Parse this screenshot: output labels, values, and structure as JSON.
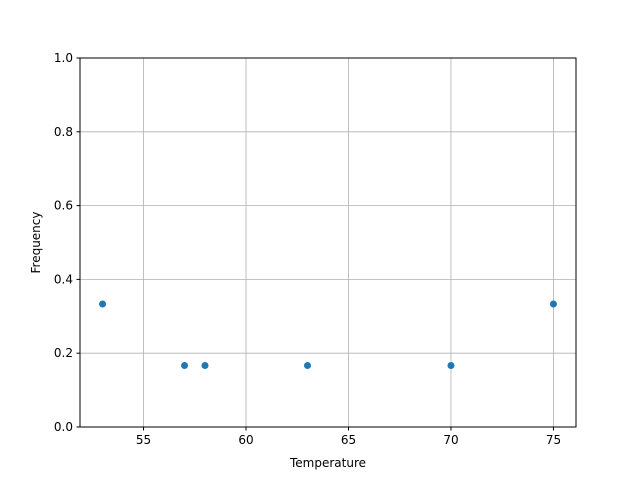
{
  "chart_data": {
    "type": "scatter",
    "title": "",
    "xlabel": "Temperature",
    "ylabel": "Frequency",
    "xlim": [
      51.9,
      76.1
    ],
    "ylim": [
      0,
      1
    ],
    "xticks": [
      55,
      60,
      65,
      70,
      75
    ],
    "xtick_labels": [
      "55",
      "60",
      "65",
      "70",
      "75"
    ],
    "yticks": [
      0,
      0.2,
      0.4,
      0.6,
      0.8,
      1.0
    ],
    "ytick_labels": [
      "0.0",
      "0.2",
      "0.4",
      "0.6",
      "0.8",
      "1.0"
    ],
    "grid": true,
    "color": "#1f77b4",
    "points": [
      {
        "x": 53,
        "y": 0.3333
      },
      {
        "x": 57,
        "y": 0.1667
      },
      {
        "x": 58,
        "y": 0.1667
      },
      {
        "x": 63,
        "y": 0.1667
      },
      {
        "x": 70,
        "y": 0.1667
      },
      {
        "x": 75,
        "y": 0.3333
      }
    ]
  }
}
